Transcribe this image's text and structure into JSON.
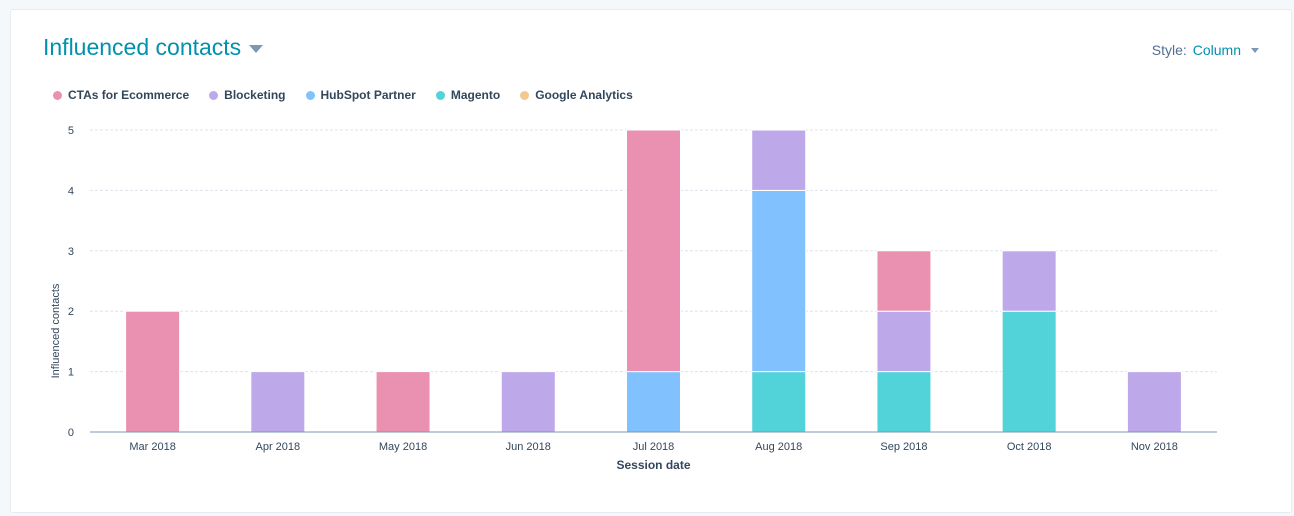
{
  "header": {
    "title": "Influenced contacts",
    "style_label": "Style:",
    "style_value": "Column"
  },
  "chart_data": {
    "type": "bar",
    "stacked": true,
    "xlabel": "Session date",
    "ylabel": "Influenced contacts",
    "ylim": [
      0,
      5
    ],
    "yticks": [
      "0",
      "1",
      "2",
      "3",
      "4",
      "5"
    ],
    "categories": [
      "Mar 2018",
      "Apr 2018",
      "May 2018",
      "Jun 2018",
      "Jul 2018",
      "Aug 2018",
      "Sep 2018",
      "Oct 2018",
      "Nov 2018"
    ],
    "legend_position": "top-left",
    "series": [
      {
        "name": "Magento",
        "color": "#51d3d9",
        "values": [
          0,
          0,
          0,
          0,
          0,
          1,
          1,
          2,
          0
        ]
      },
      {
        "name": "HubSpot Partner",
        "color": "#81c1fd",
        "values": [
          0,
          0,
          0,
          0,
          1,
          3,
          0,
          0,
          0
        ]
      },
      {
        "name": "Blocketing",
        "color": "#bda9ea",
        "values": [
          0,
          1,
          0,
          1,
          0,
          1,
          1,
          1,
          1
        ]
      },
      {
        "name": "CTAs for Ecommerce",
        "color": "#ea90b1",
        "values": [
          2,
          0,
          1,
          0,
          4,
          0,
          1,
          0,
          0
        ]
      },
      {
        "name": "Google Analytics",
        "color": "#f5c78e",
        "values": [
          0,
          0,
          0,
          0,
          0,
          0,
          0,
          0,
          0
        ]
      }
    ],
    "legend": [
      {
        "name": "CTAs for Ecommerce",
        "color": "#ea90b1"
      },
      {
        "name": "Blocketing",
        "color": "#bda9ea"
      },
      {
        "name": "HubSpot Partner",
        "color": "#81c1fd"
      },
      {
        "name": "Magento",
        "color": "#51d3d9"
      },
      {
        "name": "Google Analytics",
        "color": "#f5c78e"
      }
    ]
  }
}
